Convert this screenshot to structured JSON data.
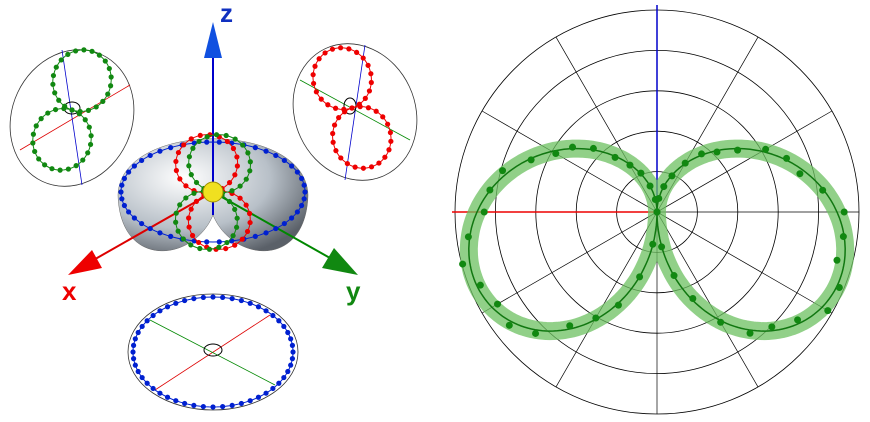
{
  "axes_labels": {
    "z": "z",
    "x": "x",
    "y": "y"
  }
}
